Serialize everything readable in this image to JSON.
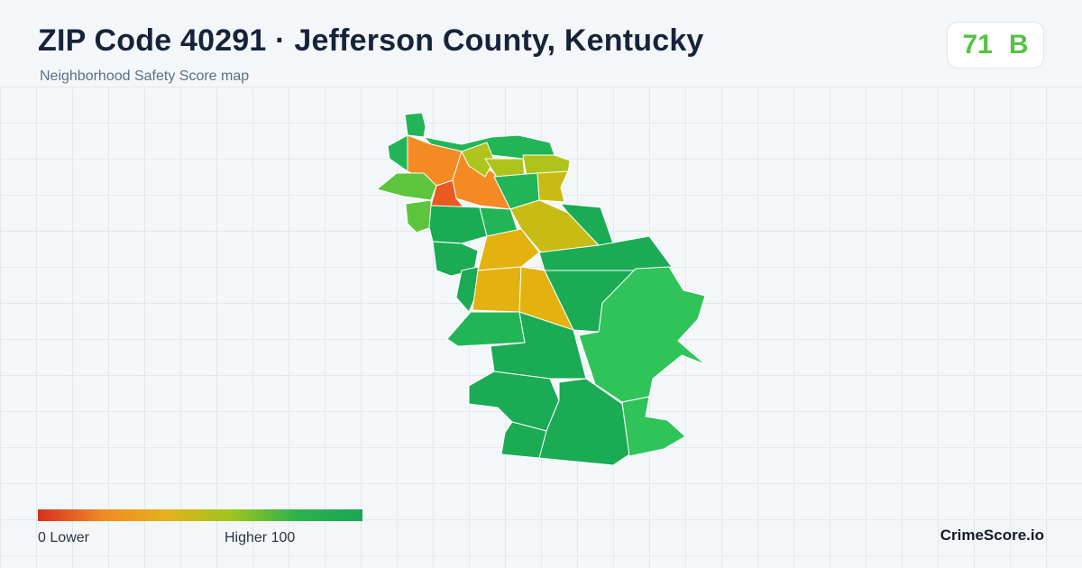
{
  "header": {
    "title": "ZIP Code 40291 · Jefferson County, Kentucky",
    "subtitle": "Neighborhood Safety Score map"
  },
  "score": {
    "value": "71",
    "grade": "B",
    "color": "#55c244"
  },
  "legend": {
    "min_label": "0  Lower",
    "max_label": "Higher  100",
    "gradient": [
      "#d7301f",
      "#f08a24",
      "#e4b21a",
      "#9cc51e",
      "#2bb24c",
      "#1aa655"
    ]
  },
  "brand": "CrimeScore.io",
  "map": {
    "palette": {
      "low_red": "#ea5a20",
      "orange": "#f38a22",
      "amber": "#e3b20f",
      "olive": "#c8bc14",
      "yellow_green": "#aec41d",
      "light_green": "#5cc53d",
      "green": "#22b557",
      "dark_green": "#1aab54",
      "mint": "#2fc35a"
    }
  }
}
